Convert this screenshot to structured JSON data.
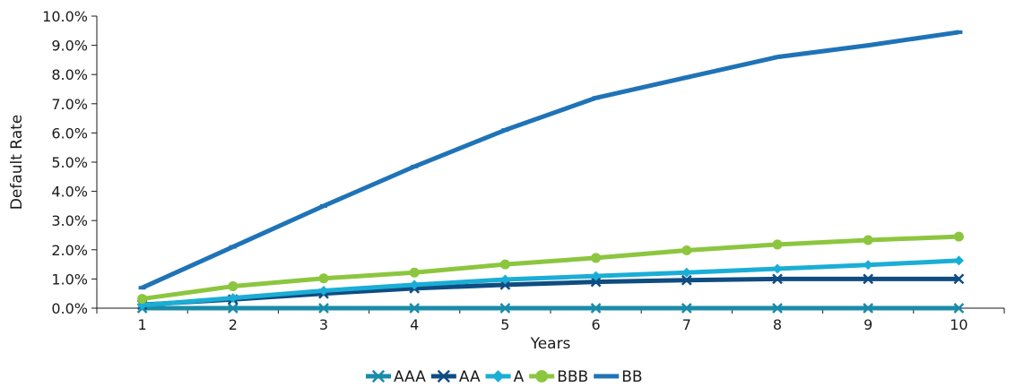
{
  "chart_data": {
    "type": "line",
    "xlabel": "Years",
    "ylabel": "Default Rate",
    "x": [
      1,
      2,
      3,
      4,
      5,
      6,
      7,
      8,
      9,
      10
    ],
    "ylim": [
      0,
      10
    ],
    "y_ticks": [
      "0.0%",
      "1.0%",
      "2.0%",
      "3.0%",
      "4.0%",
      "5.0%",
      "6.0%",
      "7.0%",
      "8.0%",
      "9.0%",
      "10.0%"
    ],
    "legend_position": "bottom",
    "grid": false,
    "series": [
      {
        "name": "AAA",
        "color": "#1a8ba8",
        "marker": "x",
        "values": [
          0.0,
          0.0,
          0.0,
          0.0,
          0.0,
          0.0,
          0.0,
          0.0,
          0.0,
          0.0
        ]
      },
      {
        "name": "AA",
        "color": "#0f4c81",
        "marker": "x",
        "values": [
          0.12,
          0.3,
          0.5,
          0.68,
          0.8,
          0.9,
          0.96,
          1.0,
          1.0,
          1.0
        ]
      },
      {
        "name": "A",
        "color": "#1aaed6",
        "marker": "diamond",
        "values": [
          0.1,
          0.35,
          0.6,
          0.8,
          0.98,
          1.1,
          1.22,
          1.35,
          1.48,
          1.63
        ]
      },
      {
        "name": "BBB",
        "color": "#8cc63f",
        "marker": "circle",
        "values": [
          0.32,
          0.75,
          1.02,
          1.22,
          1.5,
          1.72,
          1.98,
          2.18,
          2.33,
          2.45
        ]
      },
      {
        "name": "BB",
        "color": "#1f73b7",
        "marker": "dash",
        "values": [
          0.7,
          2.1,
          3.5,
          4.85,
          6.1,
          7.2,
          7.9,
          8.6,
          9.0,
          9.45
        ]
      }
    ]
  }
}
